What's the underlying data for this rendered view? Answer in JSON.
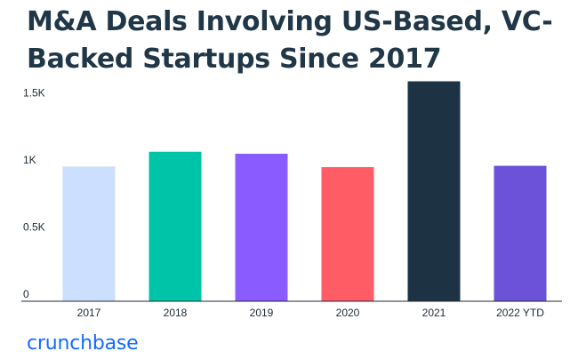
{
  "title": "M&A Deals Involving US-Based, VC-Backed Startups Since 2017",
  "brand": {
    "logo_text": "crunchbase",
    "color": "#146aff"
  },
  "chart_data": {
    "type": "bar",
    "title": "M&A Deals Involving US-Based, VC-Backed Startups Since 2017",
    "xlabel": "",
    "ylabel": "",
    "categories": [
      "2017",
      "2018",
      "2019",
      "2020",
      "2021",
      "2022 YTD"
    ],
    "values": [
      1005,
      1115,
      1100,
      1000,
      1640,
      1010
    ],
    "colors": [
      "#cddffe",
      "#00c4a8",
      "#8a5cff",
      "#ff5c66",
      "#1d3344",
      "#6b52d8"
    ],
    "yticks": [
      {
        "value": 0,
        "label": "0"
      },
      {
        "value": 500,
        "label": "0.5K"
      },
      {
        "value": 1000,
        "label": "1K"
      },
      {
        "value": 1500,
        "label": "1.5K"
      }
    ],
    "ylim": [
      0,
      1650
    ],
    "grid": false,
    "legend": "none"
  }
}
